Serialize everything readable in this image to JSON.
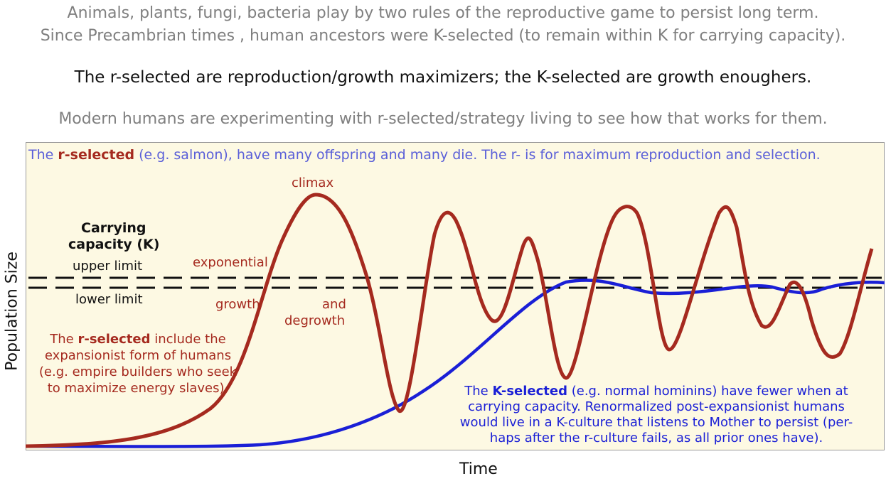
{
  "header": {
    "line1": "Animals, plants, fungi, bacteria play by two rules of the reproductive game to persist long term.",
    "line2": "Since Precambrian times , human ancestors were K-selected (to remain within K for carrying capacity).",
    "line3": "The r-selected are reproduction/growth maximizers; the K-selected are growth enoughers.",
    "line4": "Modern humans are experimenting with r-selected/strategy living to see how that works for them."
  },
  "top_note": {
    "prefix": "The ",
    "bold": "r-selected",
    "rest": " (e.g. salmon), have many offspring and many die. The r- is for maximum reproduction and selection."
  },
  "labels": {
    "carrying_1": "Carrying",
    "carrying_2": "capacity (K)",
    "upper_limit": "upper limit",
    "lower_limit": "lower limit",
    "climax": "climax",
    "exponential": "exponential",
    "growth": "growth",
    "and": "and",
    "degrowth": "degrowth"
  },
  "r_note": {
    "prefix": "The ",
    "bold": "r-selected",
    "line1_rest": " include  the",
    "line2": "expansionist form of humans",
    "line3": "(e.g. empire builders who seek",
    "line4": "to maximize energy slaves)."
  },
  "k_note": {
    "prefix": "The ",
    "bold": "K-selected",
    "line1_rest": " (e.g. normal hominins) have fewer when at",
    "line2": "carrying capacity. Renormalized post-expansionist humans",
    "line3": "would live in a K-culture that listens to Mother to persist (per-",
    "line4": "haps after the r-culture fails, as all prior ones have)."
  },
  "axes": {
    "x_label": "Time",
    "y_label": "Population Size"
  },
  "colors": {
    "r_curve": "#a52a1f",
    "k_curve": "#1a1fd6",
    "plot_bg": "#fdf9e3",
    "dashed": "#111111"
  }
}
